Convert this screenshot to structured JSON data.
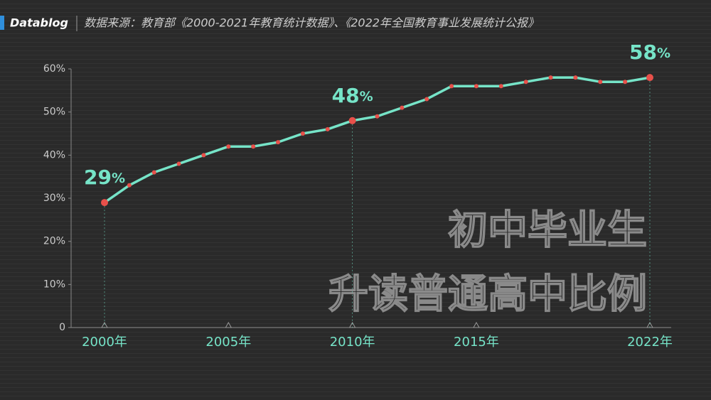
{
  "brand": "Datablog",
  "source": "数据来源：教育部《2000-2021年教育统计数据》、《2022年全国教育事业发展统计公报》",
  "chart_data": {
    "type": "line",
    "title_lines": [
      "初中毕业生",
      "升读普通高中比例"
    ],
    "x": [
      2000,
      2001,
      2002,
      2003,
      2004,
      2005,
      2006,
      2007,
      2008,
      2009,
      2010,
      2011,
      2012,
      2013,
      2014,
      2015,
      2016,
      2017,
      2018,
      2019,
      2020,
      2021,
      2022
    ],
    "series": [
      {
        "name": null,
        "color": "#76e4c8",
        "marker_color": "#e8504a",
        "values": [
          29,
          33,
          36,
          38,
          40,
          42,
          42,
          43,
          45,
          46,
          48,
          49,
          51,
          53,
          56,
          56,
          56,
          57,
          58,
          58,
          57,
          57,
          58
        ],
        "value_labels": [
          "29%",
          null,
          null,
          null,
          null,
          null,
          null,
          null,
          null,
          null,
          "48%",
          null,
          null,
          null,
          null,
          null,
          null,
          null,
          null,
          null,
          null,
          null,
          "58%"
        ]
      }
    ],
    "xlim": [
      2000,
      2022
    ],
    "xticks": [
      {
        "value": 2000,
        "label": "2000年"
      },
      {
        "value": 2005,
        "label": "2005年"
      },
      {
        "value": 2010,
        "label": "2010年"
      },
      {
        "value": 2015,
        "label": "2015年"
      },
      {
        "value": 2022,
        "label": "2022年"
      }
    ],
    "ylim": [
      0,
      60
    ],
    "yticks": [
      0,
      {
        "value": 10,
        "label": "10%"
      },
      {
        "value": 20,
        "label": "20%"
      },
      {
        "value": 30,
        "label": "30%"
      },
      {
        "value": 40,
        "label": "40%"
      },
      {
        "value": 50,
        "label": "50%"
      },
      {
        "value": 60,
        "label": "60%"
      }
    ],
    "grid": false
  }
}
